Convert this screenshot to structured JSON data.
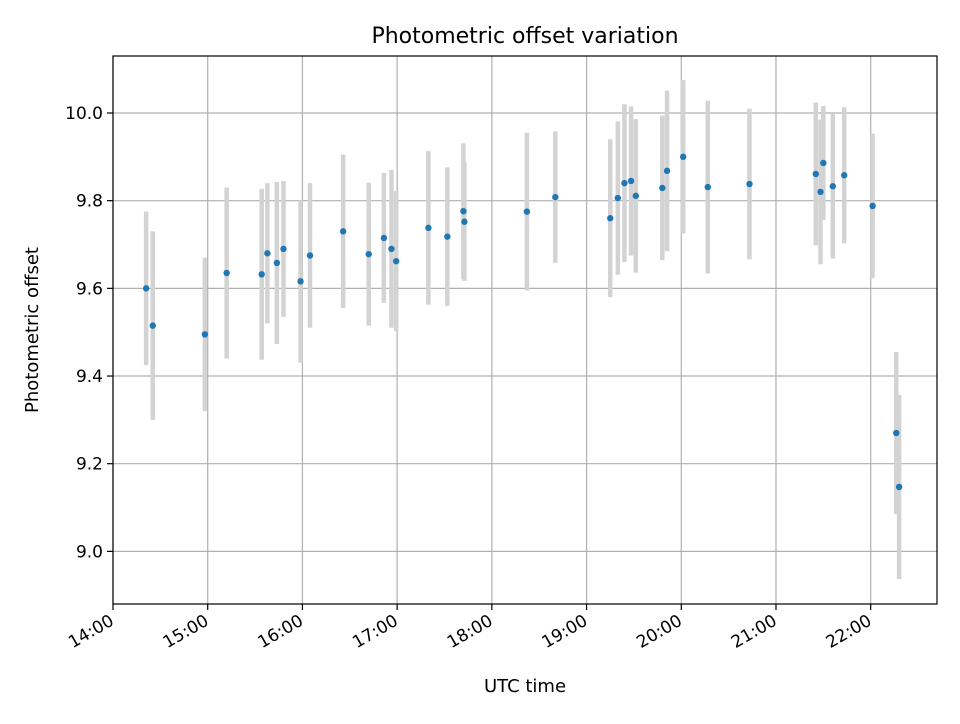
{
  "chart_data": {
    "type": "scatter",
    "title": "Photometric offset variation",
    "xlabel": "UTC time",
    "ylabel": "Photometric offset",
    "x_unit": "hours",
    "xlim": [
      14.0,
      22.7
    ],
    "ylim": [
      8.88,
      10.13
    ],
    "x_ticks": [
      14,
      15,
      16,
      17,
      18,
      19,
      20,
      21,
      22
    ],
    "x_tick_labels": [
      "14:00",
      "15:00",
      "16:00",
      "17:00",
      "18:00",
      "19:00",
      "20:00",
      "21:00",
      "22:00"
    ],
    "y_ticks": [
      9.0,
      9.2,
      9.4,
      9.6,
      9.8,
      10.0
    ],
    "y_tick_labels": [
      "9.0",
      "9.2",
      "9.4",
      "9.6",
      "9.8",
      "10.0"
    ],
    "grid": true,
    "colors": {
      "point": "#1f77b4",
      "errorbar": "#d3d3d3"
    },
    "points": [
      {
        "x": 14.35,
        "y": 9.6,
        "err": 0.175
      },
      {
        "x": 14.42,
        "y": 9.515,
        "err": 0.215
      },
      {
        "x": 14.97,
        "y": 9.495,
        "err": 0.175
      },
      {
        "x": 15.2,
        "y": 9.635,
        "err": 0.195
      },
      {
        "x": 15.57,
        "y": 9.632,
        "err": 0.195
      },
      {
        "x": 15.63,
        "y": 9.68,
        "err": 0.16
      },
      {
        "x": 15.73,
        "y": 9.658,
        "err": 0.185
      },
      {
        "x": 15.8,
        "y": 9.69,
        "err": 0.155
      },
      {
        "x": 15.98,
        "y": 9.616,
        "err": 0.185
      },
      {
        "x": 16.08,
        "y": 9.675,
        "err": 0.165
      },
      {
        "x": 16.43,
        "y": 9.73,
        "err": 0.175
      },
      {
        "x": 16.7,
        "y": 9.678,
        "err": 0.163
      },
      {
        "x": 16.86,
        "y": 9.715,
        "err": 0.148
      },
      {
        "x": 16.94,
        "y": 9.69,
        "err": 0.18
      },
      {
        "x": 16.99,
        "y": 9.662,
        "err": 0.16
      },
      {
        "x": 17.33,
        "y": 9.738,
        "err": 0.175
      },
      {
        "x": 17.53,
        "y": 9.718,
        "err": 0.158
      },
      {
        "x": 17.7,
        "y": 9.776,
        "err": 0.155
      },
      {
        "x": 17.71,
        "y": 9.752,
        "err": 0.135
      },
      {
        "x": 18.37,
        "y": 9.775,
        "err": 0.18
      },
      {
        "x": 18.67,
        "y": 9.808,
        "err": 0.15
      },
      {
        "x": 19.25,
        "y": 9.76,
        "err": 0.18
      },
      {
        "x": 19.33,
        "y": 9.806,
        "err": 0.175
      },
      {
        "x": 19.4,
        "y": 9.84,
        "err": 0.18
      },
      {
        "x": 19.47,
        "y": 9.845,
        "err": 0.17
      },
      {
        "x": 19.52,
        "y": 9.811,
        "err": 0.175
      },
      {
        "x": 19.8,
        "y": 9.829,
        "err": 0.165
      },
      {
        "x": 19.85,
        "y": 9.868,
        "err": 0.183
      },
      {
        "x": 20.02,
        "y": 9.9,
        "err": 0.175
      },
      {
        "x": 20.28,
        "y": 9.831,
        "err": 0.197
      },
      {
        "x": 20.72,
        "y": 9.838,
        "err": 0.172
      },
      {
        "x": 21.42,
        "y": 9.861,
        "err": 0.163
      },
      {
        "x": 21.47,
        "y": 9.82,
        "err": 0.165
      },
      {
        "x": 21.5,
        "y": 9.886,
        "err": 0.13
      },
      {
        "x": 21.6,
        "y": 9.833,
        "err": 0.165
      },
      {
        "x": 21.72,
        "y": 9.858,
        "err": 0.155
      },
      {
        "x": 22.02,
        "y": 9.788,
        "err": 0.165
      },
      {
        "x": 22.27,
        "y": 9.27,
        "err": 0.185
      },
      {
        "x": 22.3,
        "y": 9.147,
        "err": 0.21
      }
    ]
  }
}
